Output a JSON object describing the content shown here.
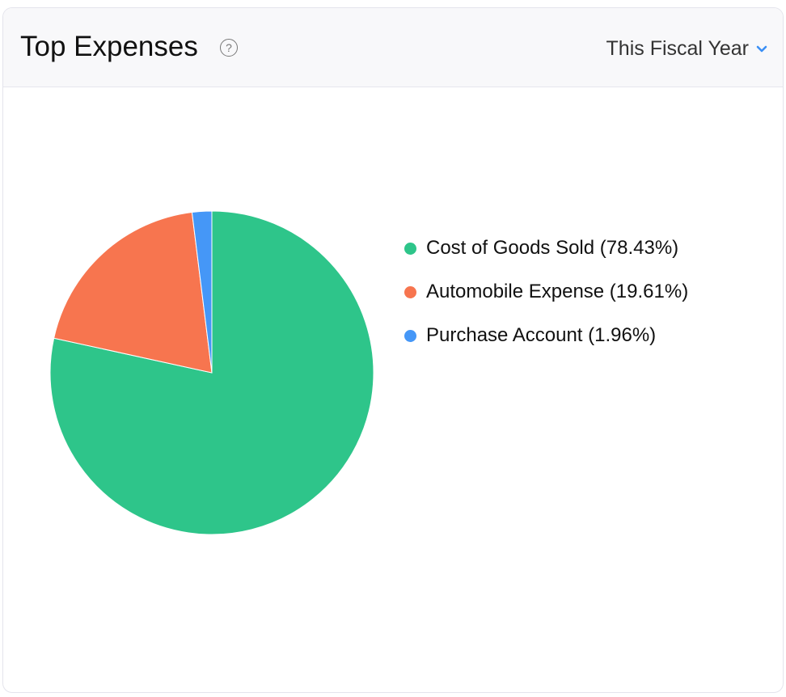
{
  "header": {
    "title": "Top Expenses",
    "help_icon": "question-circle-icon",
    "period": "This Fiscal Year",
    "period_icon": "chevron-down-icon"
  },
  "colors": {
    "accent": "#3b8ff5"
  },
  "chart_data": {
    "type": "pie",
    "categories": [
      "Cost of Goods Sold",
      "Automobile Expense",
      "Purchase Account"
    ],
    "values": [
      78.43,
      19.61,
      1.96
    ],
    "colors": [
      "#2ec58a",
      "#f7754f",
      "#4597f7"
    ],
    "legend_labels": [
      "Cost of Goods Sold (78.43%)",
      "Automobile Expense (19.61%)",
      "Purchase Account (1.96%)"
    ],
    "legend_position": "right",
    "start_angle": "top",
    "direction": "clockwise"
  }
}
